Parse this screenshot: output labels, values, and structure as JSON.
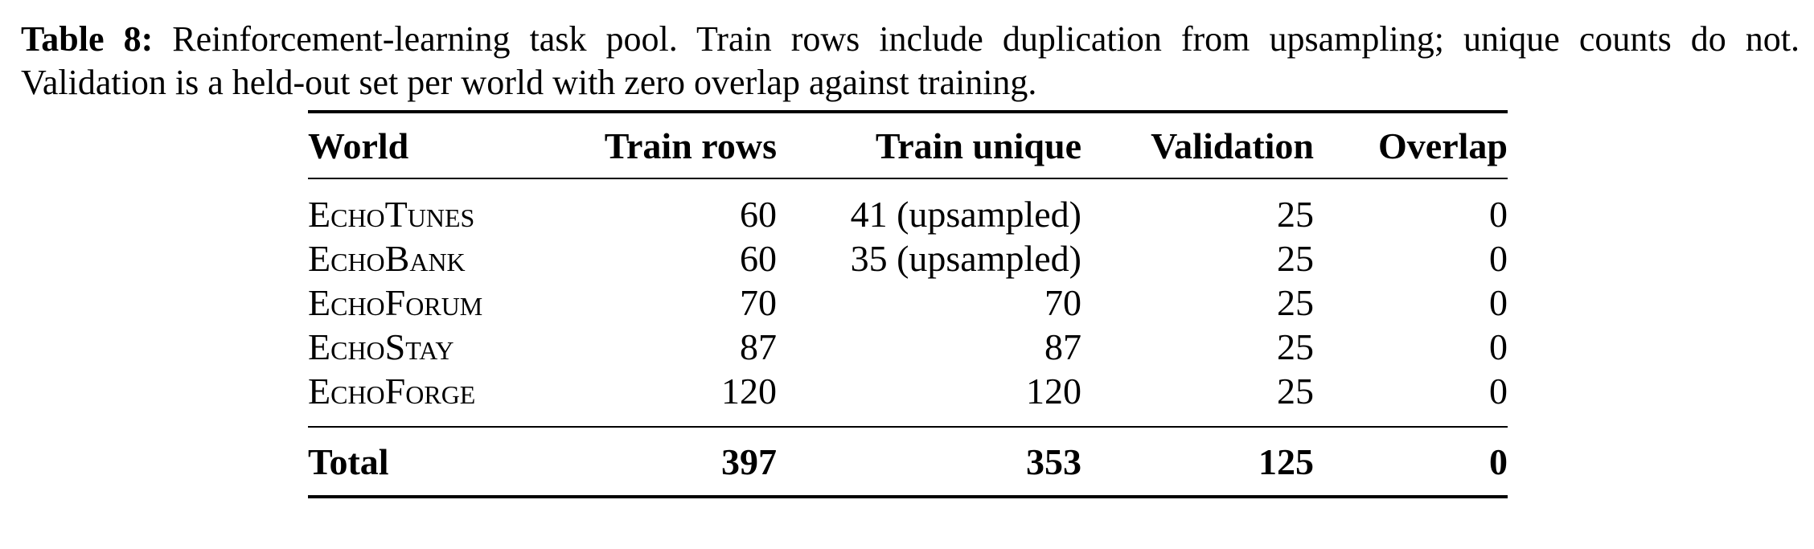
{
  "caption": {
    "label": "Table 8:",
    "text": "Reinforcement-learning task pool. Train rows include duplication from upsampling; unique counts do not. Validation is a held-out set per world with zero overlap against training."
  },
  "table": {
    "header": [
      "World",
      "Train rows",
      "Train unique",
      "Validation",
      "Overlap"
    ],
    "rows": [
      [
        "EchoTunes",
        "60",
        "41 (upsampled)",
        "25",
        "0"
      ],
      [
        "EchoBank",
        "60",
        "35 (upsampled)",
        "25",
        "0"
      ],
      [
        "EchoForum",
        "70",
        "70",
        "25",
        "0"
      ],
      [
        "EchoStay",
        "87",
        "87",
        "25",
        "0"
      ],
      [
        "EchoForge",
        "120",
        "120",
        "25",
        "0"
      ]
    ],
    "total": [
      "Total",
      "397",
      "353",
      "125",
      "0"
    ]
  }
}
